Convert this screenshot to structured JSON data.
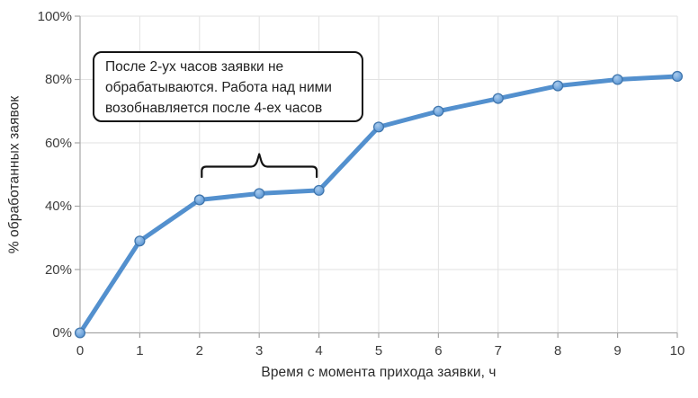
{
  "chart_data": {
    "type": "line",
    "title": "",
    "xlabel": "Время с момента прихода заявки, ч",
    "ylabel": "% обработанных заявок",
    "x": [
      0,
      1,
      2,
      3,
      4,
      5,
      6,
      7,
      8,
      9,
      10
    ],
    "values": [
      0,
      29,
      42,
      44,
      45,
      65,
      70,
      74,
      78,
      80,
      81
    ],
    "xlim": [
      0,
      10
    ],
    "ylim": [
      0,
      100
    ],
    "x_ticks": [
      "0",
      "1",
      "2",
      "3",
      "4",
      "5",
      "6",
      "7",
      "8",
      "9",
      "10"
    ],
    "x_tick_values": [
      0,
      1,
      2,
      3,
      4,
      5,
      6,
      7,
      8,
      9,
      10
    ],
    "y_ticks": [
      "0%",
      "20%",
      "40%",
      "60%",
      "80%",
      "100%"
    ],
    "y_tick_values": [
      0,
      20,
      40,
      60,
      80,
      100
    ],
    "grid": true,
    "legend": "none",
    "line_color": "#5390ce",
    "marker_fill": "#7aace0",
    "marker_highlight": "#a9cbec",
    "marker_stroke": "#4076ad"
  },
  "annotation": {
    "text": "После 2-ух часов заявки не обрабатываются. Работа над ними возобнавляется после 4-ех часов",
    "lines": [
      "После 2-ух часов заявки не",
      "обрабатываются. Работа над ними",
      "возобнавляется после 4-ех часов"
    ],
    "brace": {
      "from_hour": 2,
      "to_hour": 4,
      "apex_hour": 3
    }
  },
  "colors": {
    "grid": "#e2e2e2",
    "axis": "#a6a6a6",
    "tick_label": "#3d3d3d",
    "axis_title": "#2b2b2b",
    "annotation_border": "#141414",
    "annotation_text": "#222222",
    "brace": "#121212",
    "background": "#ffffff"
  }
}
